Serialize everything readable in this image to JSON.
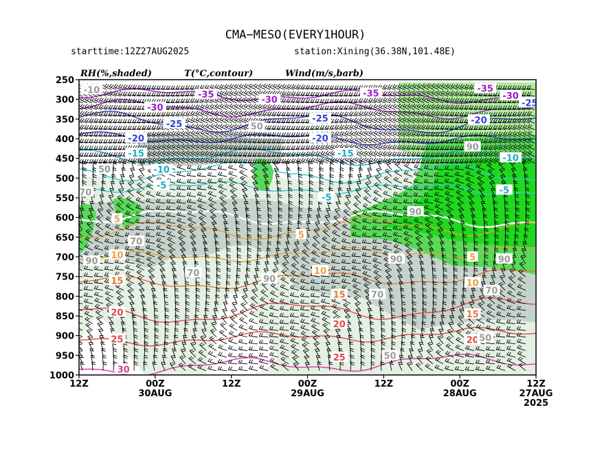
{
  "header": {
    "title": "CMA−MESO(EVERY1HOUR)",
    "starttime": "starttime:12Z27AUG2025",
    "station": "station:Xining(36.38N,101.48E)"
  },
  "panel_labels": {
    "rh": "RH(%,shaded)",
    "temp": "T(°C,contour)",
    "wind": "Wind(m/s,barb)"
  },
  "chart_data": {
    "type": "heatmap",
    "title": "CMA−MESO(EVERY1HOUR)",
    "ylabel": "",
    "xlabel": "",
    "y_axis": {
      "values": [
        250,
        300,
        350,
        400,
        450,
        500,
        550,
        600,
        650,
        700,
        750,
        800,
        850,
        900,
        950,
        1000
      ],
      "labels": [
        "250",
        "300",
        "350",
        "400",
        "450",
        "500",
        "550",
        "600",
        "650",
        "700",
        "750",
        "800",
        "850",
        "900",
        "950",
        "1000"
      ],
      "range": [
        250,
        1000
      ],
      "inverted": true
    },
    "x_axis": {
      "ticks": [
        {
          "hours_before_end": 72,
          "label": "12Z",
          "date": ""
        },
        {
          "hours_before_end": 60,
          "label": "00Z",
          "date": "30AUG"
        },
        {
          "hours_before_end": 48,
          "label": "12Z",
          "date": ""
        },
        {
          "hours_before_end": 36,
          "label": "00Z",
          "date": "29AUG"
        },
        {
          "hours_before_end": 24,
          "label": "12Z",
          "date": ""
        },
        {
          "hours_before_end": 12,
          "label": "00Z",
          "date": "28AUG"
        },
        {
          "hours_before_end": 0,
          "label": "12Z",
          "date": "27AUG",
          "year": "2025"
        }
      ],
      "direction": "time decreases to the right"
    },
    "rh_shading": {
      "levels": [
        50,
        70,
        90
      ],
      "colors": [
        "#e4f0e4",
        "#c6d3cc",
        "#b0ec9e",
        "#58d958",
        "#1fd81f"
      ]
    },
    "temperature_contours": [
      {
        "value": -35,
        "color": "#9b1fc9",
        "pressure_level": 285
      },
      {
        "value": -30,
        "color": "#9b1fc9",
        "pressure_level": 320
      },
      {
        "value": -25,
        "color": "#2f3fd0",
        "pressure_level": 355
      },
      {
        "value": -20,
        "color": "#2f3fd0",
        "pressure_level": 395
      },
      {
        "value": -15,
        "color": "#16aec0",
        "pressure_level": 440
      },
      {
        "value": -10,
        "color": "#2fcad0",
        "pressure_level": 480
      },
      {
        "value": -5,
        "color": "#2fcad0",
        "pressure_level": 520
      },
      {
        "value": 0,
        "color": "#ffffff",
        "pressure_level": 595
      },
      {
        "value": 5,
        "color": "#e8a040",
        "pressure_level": 640
      },
      {
        "value": 10,
        "color": "#e8a040",
        "pressure_level": 705
      },
      {
        "value": 15,
        "color": "#e07830",
        "pressure_level": 770
      },
      {
        "value": 20,
        "color": "#e04848",
        "pressure_level": 850
      },
      {
        "value": 25,
        "color": "#e04848",
        "pressure_level": 915
      },
      {
        "value": 30,
        "color": "#d33a9e",
        "pressure_level": 985
      }
    ],
    "contour_labels": [
      {
        "text": "-35",
        "x_hours": 52,
        "p": 287,
        "color": "#9b1fc9"
      },
      {
        "text": "-35",
        "x_hours": 26,
        "p": 284,
        "color": "#9b1fc9"
      },
      {
        "text": "-35",
        "x_hours": 8,
        "p": 272,
        "color": "#9b1fc9"
      },
      {
        "text": "-30",
        "x_hours": 42,
        "p": 300,
        "color": "#9b1fc9"
      },
      {
        "text": "-30",
        "x_hours": 60,
        "p": 320,
        "color": "#9b1fc9"
      },
      {
        "text": "-30",
        "x_hours": 4,
        "p": 290,
        "color": "#9b1fc9"
      },
      {
        "text": "-25",
        "x_hours": 57,
        "p": 362,
        "color": "#2f3fd0"
      },
      {
        "text": "-25",
        "x_hours": 34,
        "p": 348,
        "color": "#2f3fd0"
      },
      {
        "text": "-25",
        "x_hours": 1,
        "p": 308,
        "color": "#2f3fd0"
      },
      {
        "text": "-20",
        "x_hours": 63,
        "p": 398,
        "color": "#2f3fd0"
      },
      {
        "text": "-20",
        "x_hours": 34,
        "p": 398,
        "color": "#2f3fd0"
      },
      {
        "text": "-20",
        "x_hours": 9,
        "p": 352,
        "color": "#2f3fd0"
      },
      {
        "text": "-15",
        "x_hours": 63,
        "p": 437,
        "color": "#16aec0"
      },
      {
        "text": "-15",
        "x_hours": 30,
        "p": 437,
        "color": "#16aec0"
      },
      {
        "text": "-10",
        "x_hours": 59,
        "p": 478,
        "color": "#16aec0"
      },
      {
        "text": "-10",
        "x_hours": 4,
        "p": 448,
        "color": "#16aec0"
      },
      {
        "text": "-5",
        "x_hours": 59,
        "p": 518,
        "color": "#16aec0"
      },
      {
        "text": "-5",
        "x_hours": 33,
        "p": 548,
        "color": "#16aec0"
      },
      {
        "text": "-5",
        "x_hours": 5,
        "p": 530,
        "color": "#16aec0"
      },
      {
        "text": "5",
        "x_hours": 66,
        "p": 603,
        "color": "#e8a040"
      },
      {
        "text": "5",
        "x_hours": 37,
        "p": 643,
        "color": "#e8a040"
      },
      {
        "text": "5",
        "x_hours": 10,
        "p": 700,
        "color": "#e8a040"
      },
      {
        "text": "10",
        "x_hours": 66,
        "p": 695,
        "color": "#e8a040"
      },
      {
        "text": "10",
        "x_hours": 34,
        "p": 735,
        "color": "#e8a040"
      },
      {
        "text": "10",
        "x_hours": 10,
        "p": 765,
        "color": "#e8a040"
      },
      {
        "text": "15",
        "x_hours": 66,
        "p": 760,
        "color": "#e07830"
      },
      {
        "text": "15",
        "x_hours": 31,
        "p": 795,
        "color": "#e07830"
      },
      {
        "text": "15",
        "x_hours": 10,
        "p": 845,
        "color": "#e07830"
      },
      {
        "text": "20",
        "x_hours": 66,
        "p": 840,
        "color": "#e04848"
      },
      {
        "text": "20",
        "x_hours": 31,
        "p": 870,
        "color": "#e04848"
      },
      {
        "text": "20",
        "x_hours": 10,
        "p": 910,
        "color": "#e04848"
      },
      {
        "text": "25",
        "x_hours": 66,
        "p": 908,
        "color": "#e04848"
      },
      {
        "text": "25",
        "x_hours": 31,
        "p": 955,
        "color": "#e04848"
      },
      {
        "text": "30",
        "x_hours": 65,
        "p": 985,
        "color": "#d33a9e"
      },
      {
        "text": "-10",
        "x_hours": 70,
        "p": 275,
        "color": "#9a9a9a"
      },
      {
        "text": "50",
        "x_hours": 44,
        "p": 368,
        "color": "#9a9a9a"
      },
      {
        "text": "50",
        "x_hours": 68,
        "p": 477,
        "color": "#9a9a9a"
      },
      {
        "text": "70",
        "x_hours": 71,
        "p": 535,
        "color": "#9a9a9a"
      },
      {
        "text": "70",
        "x_hours": 63,
        "p": 660,
        "color": "#9a9a9a"
      },
      {
        "text": "90",
        "x_hours": 70,
        "p": 710,
        "color": "#9a9a9a"
      },
      {
        "text": "70",
        "x_hours": 54,
        "p": 740,
        "color": "#9a9a9a"
      },
      {
        "text": "90",
        "x_hours": 42,
        "p": 755,
        "color": "#9a9a9a"
      },
      {
        "text": "90",
        "x_hours": 19,
        "p": 585,
        "color": "#9a9a9a"
      },
      {
        "text": "90",
        "x_hours": 22,
        "p": 705,
        "color": "#9a9a9a"
      },
      {
        "text": "90",
        "x_hours": 5,
        "p": 705,
        "color": "#9a9a9a"
      },
      {
        "text": "70",
        "x_hours": 25,
        "p": 795,
        "color": "#9a9a9a"
      },
      {
        "text": "70",
        "x_hours": 7,
        "p": 785,
        "color": "#9a9a9a"
      },
      {
        "text": "50",
        "x_hours": 8,
        "p": 905,
        "color": "#9a9a9a"
      },
      {
        "text": "90",
        "x_hours": 10,
        "p": 420,
        "color": "#9a9a9a"
      },
      {
        "text": "50",
        "x_hours": 23,
        "p": 950,
        "color": "#9a9a9a"
      }
    ]
  }
}
